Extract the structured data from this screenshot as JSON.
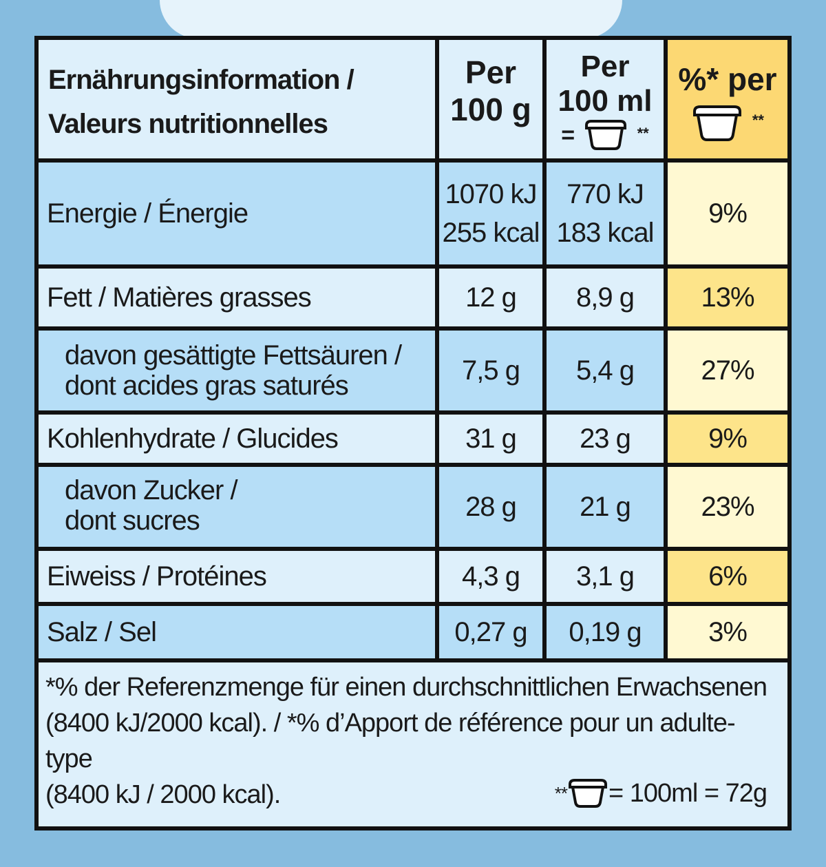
{
  "header": {
    "label_line1": "Ernährungsinformation /",
    "label_line2": "Valeurs nutritionnelles",
    "col1_line1": "Per",
    "col1_line2": "100 g",
    "col2_line1": "Per",
    "col2_line2": "100 ml",
    "col2_eq": "=",
    "col2_mark": "**",
    "col3_line1": "%* per",
    "col3_mark": "**"
  },
  "rows": [
    {
      "label": "Energie / Énergie",
      "per100g_l1": "1070 kJ",
      "per100g_l2": "255 kcal",
      "per100ml_l1": "770 kJ",
      "per100ml_l2": "183 kcal",
      "pct": "9%"
    },
    {
      "label": "Fett / Matières grasses",
      "per100g": "12 g",
      "per100ml": "8,9 g",
      "pct": "13%"
    },
    {
      "label_l1": "davon gesättigte Fettsäuren /",
      "label_l2": "dont acides gras saturés",
      "per100g": "7,5 g",
      "per100ml": "5,4 g",
      "pct": "27%"
    },
    {
      "label": "Kohlenhydrate / Glucides",
      "per100g": "31 g",
      "per100ml": "23 g",
      "pct": "9%"
    },
    {
      "label_l1": "davon Zucker /",
      "label_l2": "dont sucres",
      "per100g": "28 g",
      "per100ml": "21 g",
      "pct": "23%"
    },
    {
      "label": "Eiweiss / Protéines",
      "per100g": "4,3 g",
      "per100ml": "3,1 g",
      "pct": "6%"
    },
    {
      "label": "Salz / Sel",
      "per100g": "0,27 g",
      "per100ml": "0,19 g",
      "pct": "3%"
    }
  ],
  "footnote": {
    "line1": "*% der Referenzmenge für einen durchschnittlichen Erwachsenen",
    "line2": "(8400 kJ/2000 kcal). / *% d’Apport de référence pour un adulte-type",
    "line3": "(8400 kJ / 2000 kcal).",
    "portion_prefix": "**",
    "portion_text": "= 100ml = 72g"
  },
  "icon": "ice-cream-cup-icon"
}
